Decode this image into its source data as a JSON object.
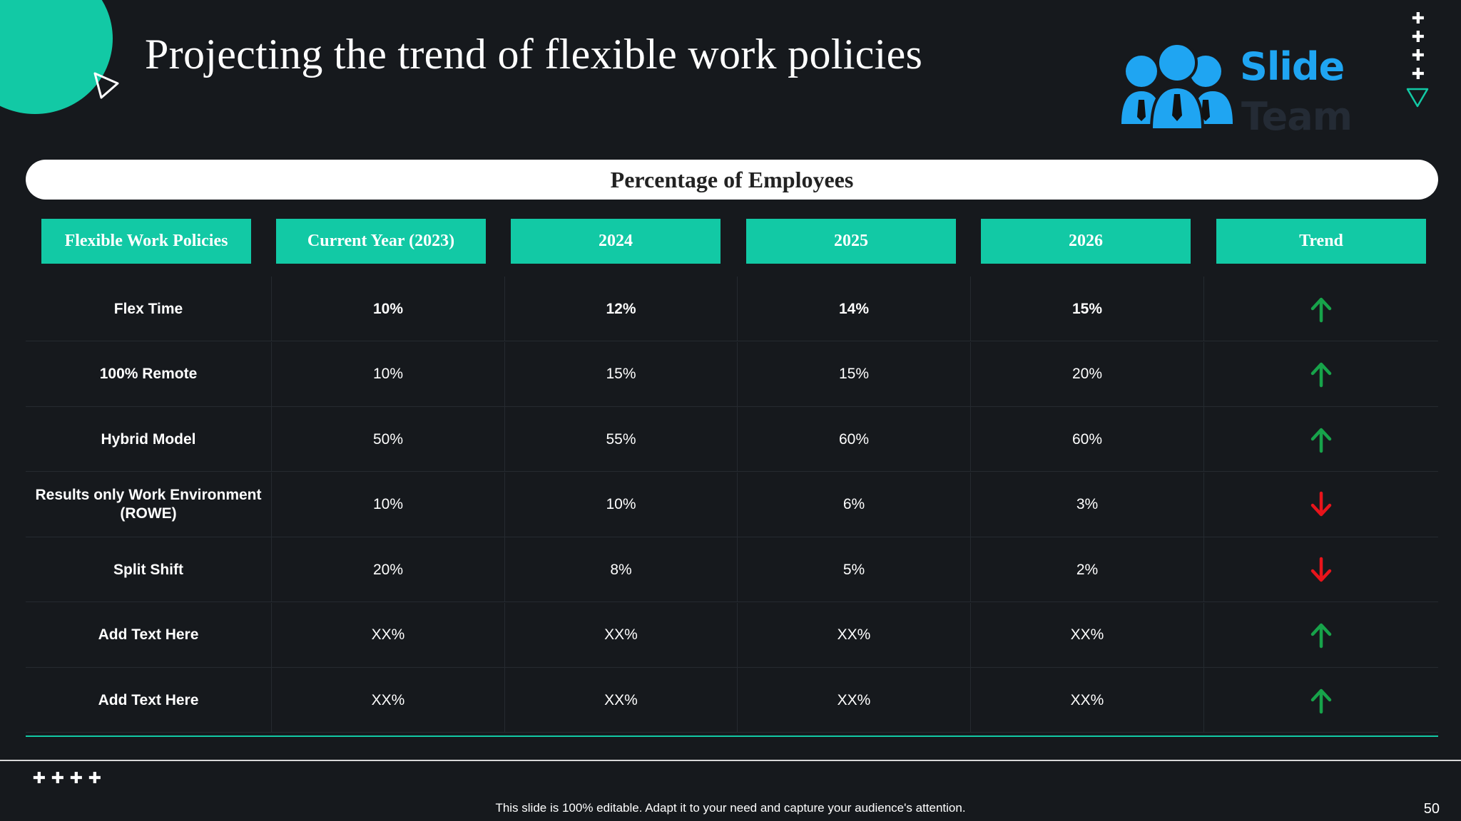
{
  "title": "Projecting  the trend of flexible  work policies",
  "logo": {
    "line1": "Slide",
    "line2": "Team"
  },
  "section_label": "Percentage of Employees",
  "columns": [
    "Flexible Work Policies",
    "Current  Year (2023)",
    "2024",
    "2025",
    "2026",
    "Trend"
  ],
  "rows": [
    {
      "label": "Flex Time",
      "values": [
        "10%",
        "12%",
        "14%",
        "15%"
      ],
      "trend": "up",
      "bold_values": true
    },
    {
      "label": "100%  Remote",
      "values": [
        "10%",
        "15%",
        "15%",
        "20%"
      ],
      "trend": "up",
      "bold_values": false
    },
    {
      "label": "Hybrid Model",
      "values": [
        "50%",
        "55%",
        "60%",
        "60%"
      ],
      "trend": "up",
      "bold_values": false
    },
    {
      "label": "Results  only Work Environment (ROWE)",
      "values": [
        "10%",
        "10%",
        "6%",
        "3%"
      ],
      "trend": "down",
      "bold_values": false
    },
    {
      "label": "Split Shift",
      "values": [
        "20%",
        "8%",
        "5%",
        "2%"
      ],
      "trend": "down",
      "bold_values": false
    },
    {
      "label": "Add Text Here",
      "values": [
        "XX%",
        "XX%",
        "XX%",
        "XX%"
      ],
      "trend": "up",
      "bold_values": false
    },
    {
      "label": "Add Text Here",
      "values": [
        "XX%",
        "XX%",
        "XX%",
        "XX%"
      ],
      "trend": "up",
      "bold_values": false
    }
  ],
  "colors": {
    "accent": "#12c9a5",
    "background": "#16191d",
    "trend_up": "#17a34a",
    "trend_down": "#e8141b"
  },
  "footer": {
    "note": "This slide is 100% editable.  Adapt it to your need and capture your audience's attention.",
    "page_number": "50"
  }
}
